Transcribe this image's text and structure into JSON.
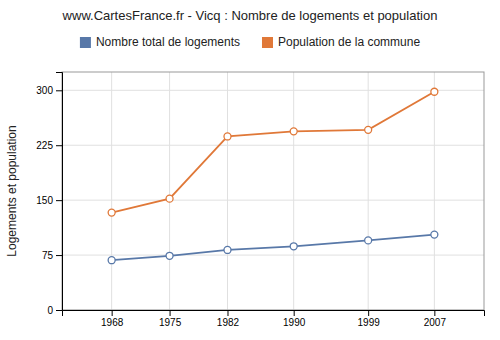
{
  "chart_data": {
    "type": "line",
    "title": "www.CartesFrance.fr - Vicq : Nombre de logements et population",
    "ylabel": "Logements et population",
    "x": [
      1968,
      1975,
      1982,
      1990,
      1999,
      2007
    ],
    "xlim": [
      1962,
      2013
    ],
    "xticks": [
      1968,
      1975,
      1982,
      1990,
      1999,
      2007
    ],
    "ylim": [
      0,
      325
    ],
    "yticks": [
      0,
      75,
      150,
      225,
      300
    ],
    "grid": true,
    "legend": "top",
    "series": [
      {
        "name": "Nombre total de logements",
        "color": "#5878a8",
        "marker": "circle",
        "values": [
          68,
          74,
          82,
          87,
          95,
          103
        ]
      },
      {
        "name": "Population de la commune",
        "color": "#e07838",
        "marker": "circle",
        "values": [
          133,
          152,
          237,
          244,
          246,
          298
        ]
      }
    ]
  }
}
